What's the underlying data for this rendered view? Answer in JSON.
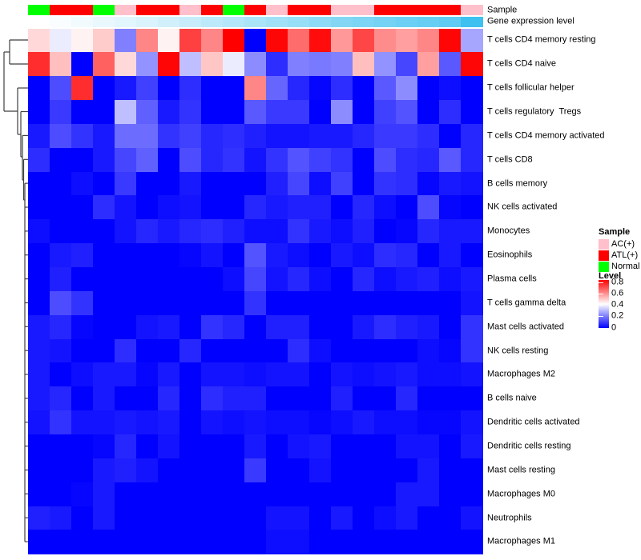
{
  "header": {
    "sample_label": "Sample",
    "gene_expression_label": "Gene expression level"
  },
  "chart_data": {
    "type": "heatmap",
    "title": "",
    "columns": 21,
    "rows": [
      "T cells CD4 memory resting",
      "T cells CD4 naive",
      "T cells follicular helper",
      "T cells regulatory  Tregs",
      "T cells CD4 memory activated",
      "T cells CD8",
      "B cells memory",
      "NK cells activated",
      "Monocytes",
      "Eosinophils",
      "Plasma cells",
      "T cells gamma delta",
      "Mast cells activated",
      "NK cells resting",
      "Macrophages M2",
      "B cells naive",
      "Dendritic cells activated",
      "Dendritic cells resting",
      "Mast cells resting",
      "Macrophages M0",
      "Neutrophils",
      "Macrophages M1"
    ],
    "values": [
      [
        0.46,
        0.37,
        0.42,
        0.48,
        0.2,
        0.59,
        0.42,
        0.7,
        0.59,
        0.8,
        0.0,
        0.79,
        0.63,
        0.78,
        0.56,
        0.69,
        0.58,
        0.55,
        0.59,
        0.79,
        0.26
      ],
      [
        0.73,
        0.5,
        0.0,
        0.65,
        0.46,
        0.23,
        0.79,
        0.3,
        0.49,
        0.37,
        0.22,
        0.07,
        0.2,
        0.19,
        0.2,
        0.5,
        0.23,
        0.11,
        0.55,
        0.14,
        0.79
      ],
      [
        0.0,
        0.12,
        0.73,
        0.0,
        0.04,
        0.1,
        0.0,
        0.07,
        0.0,
        0.0,
        0.59,
        0.16,
        0.06,
        0.01,
        0.07,
        0.0,
        0.14,
        0.22,
        0.0,
        0.02,
        0.0
      ],
      [
        0.0,
        0.09,
        0.0,
        0.0,
        0.3,
        0.15,
        0.04,
        0.08,
        0.0,
        0.0,
        0.14,
        0.09,
        0.09,
        0.0,
        0.22,
        0.0,
        0.1,
        0.13,
        0.0,
        0.07,
        0.0
      ],
      [
        0.04,
        0.12,
        0.08,
        0.04,
        0.17,
        0.17,
        0.08,
        0.1,
        0.06,
        0.07,
        0.05,
        0.03,
        0.03,
        0.04,
        0.04,
        0.06,
        0.09,
        0.09,
        0.07,
        0.0,
        0.06
      ],
      [
        0.07,
        0.0,
        0.0,
        0.04,
        0.11,
        0.15,
        0.0,
        0.12,
        0.06,
        0.08,
        0.03,
        0.08,
        0.13,
        0.1,
        0.08,
        0.0,
        0.12,
        0.07,
        0.06,
        0.14,
        0.06
      ],
      [
        0.0,
        0.0,
        0.02,
        0.0,
        0.09,
        0.0,
        0.0,
        0.04,
        0.0,
        0.0,
        0.0,
        0.05,
        0.11,
        0.02,
        0.1,
        0.0,
        0.08,
        0.07,
        0.01,
        0.04,
        0.03
      ],
      [
        0.0,
        0.0,
        0.0,
        0.07,
        0.03,
        0.0,
        0.02,
        0.03,
        0.0,
        0.0,
        0.06,
        0.04,
        0.05,
        0.05,
        0.0,
        0.06,
        0.02,
        0.0,
        0.12,
        0.01,
        0.0
      ],
      [
        0.02,
        0.0,
        0.0,
        0.0,
        0.03,
        0.06,
        0.04,
        0.06,
        0.07,
        0.05,
        0.02,
        0.02,
        0.08,
        0.04,
        0.02,
        0.05,
        0.0,
        0.01,
        0.06,
        0.04,
        0.04
      ],
      [
        0.0,
        0.04,
        0.05,
        0.0,
        0.0,
        0.0,
        0.0,
        0.01,
        0.03,
        0.0,
        0.13,
        0.04,
        0.02,
        0.0,
        0.04,
        0.02,
        0.07,
        0.06,
        0.0,
        0.04,
        0.0
      ],
      [
        0.0,
        0.05,
        0.0,
        0.0,
        0.0,
        0.0,
        0.0,
        0.0,
        0.0,
        0.02,
        0.11,
        0.03,
        0.06,
        0.02,
        0.0,
        0.06,
        0.02,
        0.04,
        0.05,
        0.02,
        0.04
      ],
      [
        0.0,
        0.12,
        0.08,
        0.0,
        0.0,
        0.0,
        0.0,
        0.0,
        0.0,
        0.0,
        0.08,
        0.0,
        0.0,
        0.0,
        0.0,
        0.0,
        0.0,
        0.0,
        0.0,
        0.0,
        0.03
      ],
      [
        0.04,
        0.06,
        0.01,
        0.0,
        0.0,
        0.03,
        0.04,
        0.0,
        0.08,
        0.06,
        0.0,
        0.05,
        0.05,
        0.0,
        0.0,
        0.04,
        0.07,
        0.05,
        0.04,
        0.0,
        0.08
      ],
      [
        0.04,
        0.03,
        0.0,
        0.0,
        0.07,
        0.0,
        0.0,
        0.06,
        0.0,
        0.0,
        0.0,
        0.0,
        0.07,
        0.02,
        0.0,
        0.0,
        0.0,
        0.0,
        0.02,
        0.01,
        0.08
      ],
      [
        0.04,
        0.0,
        0.02,
        0.04,
        0.04,
        0.01,
        0.04,
        0.0,
        0.03,
        0.03,
        0.02,
        0.03,
        0.03,
        0.0,
        0.03,
        0.02,
        0.03,
        0.04,
        0.02,
        0.02,
        0.03
      ],
      [
        0.04,
        0.06,
        0.0,
        0.04,
        0.0,
        0.0,
        0.06,
        0.0,
        0.07,
        0.05,
        0.05,
        0.0,
        0.0,
        0.0,
        0.05,
        0.0,
        0.0,
        0.06,
        0.0,
        0.0,
        0.0
      ],
      [
        0.03,
        0.08,
        0.03,
        0.03,
        0.04,
        0.03,
        0.04,
        0.0,
        0.03,
        0.02,
        0.03,
        0.02,
        0.02,
        0.01,
        0.02,
        0.04,
        0.02,
        0.02,
        0.01,
        0.01,
        0.03
      ],
      [
        0.0,
        0.0,
        0.0,
        0.01,
        0.06,
        0.0,
        0.03,
        0.0,
        0.0,
        0.0,
        0.04,
        0.0,
        0.03,
        0.04,
        0.0,
        0.0,
        0.0,
        0.03,
        0.03,
        0.0,
        0.04
      ],
      [
        0.0,
        0.0,
        0.0,
        0.04,
        0.05,
        0.03,
        0.0,
        0.0,
        0.0,
        0.0,
        0.09,
        0.0,
        0.0,
        0.03,
        0.0,
        0.0,
        0.0,
        0.0,
        0.04,
        0.0,
        0.0
      ],
      [
        0.0,
        0.0,
        0.01,
        0.04,
        0.0,
        0.0,
        0.0,
        0.0,
        0.0,
        0.0,
        0.0,
        0.0,
        0.0,
        0.0,
        0.0,
        0.0,
        0.0,
        0.04,
        0.04,
        0.0,
        0.0
      ],
      [
        0.05,
        0.04,
        0.0,
        0.04,
        0.0,
        0.0,
        0.0,
        0.0,
        0.0,
        0.0,
        0.0,
        0.03,
        0.03,
        0.0,
        0.04,
        0.0,
        0.02,
        0.04,
        0.0,
        0.0,
        0.03
      ],
      [
        0.0,
        0.0,
        0.0,
        0.0,
        0.0,
        0.0,
        0.0,
        0.0,
        0.0,
        0.0,
        0.0,
        0.02,
        0.02,
        0.0,
        0.0,
        0.0,
        0.0,
        0.0,
        0.0,
        0.0,
        0.0
      ]
    ],
    "column_annotations": {
      "sample": [
        "Normal",
        "ATL(+)",
        "ATL(+)",
        "Normal",
        "AC(+)",
        "ATL(+)",
        "ATL(+)",
        "AC(+)",
        "ATL(+)",
        "Normal",
        "ATL(+)",
        "AC(+)",
        "ATL(+)",
        "ATL(+)",
        "AC(+)",
        "AC(+)",
        "ATL(+)",
        "ATL(+)",
        "ATL(+)",
        "ATL(+)",
        "AC(+)"
      ],
      "gene_expression_level": [
        0.0,
        0.03,
        0.07,
        0.11,
        0.15,
        0.19,
        0.24,
        0.29,
        0.34,
        0.39,
        0.44,
        0.49,
        0.54,
        0.59,
        0.64,
        0.68,
        0.72,
        0.76,
        0.79,
        0.82,
        1.0
      ]
    },
    "annotation_colors": {
      "AC(+)": "#FFC0CB",
      "ATL(+)": "#FF0000",
      "Normal": "#00FF00"
    },
    "expression_gradient": {
      "low": "#FFFFFF",
      "high": "#3EC1F0"
    },
    "color_scale": {
      "min": 0,
      "mid": 0.4,
      "max": 0.8,
      "min_color": "#0000FF",
      "mid_color": "#FFFFFF",
      "max_color": "#FF0000"
    },
    "legend_position": "right",
    "grid": false
  },
  "legend": {
    "sample_title": "Sample",
    "sample_items": [
      {
        "label": "AC(+)",
        "color": "#FFC0CB"
      },
      {
        "label": "ATL(+)",
        "color": "#FF0000"
      },
      {
        "label": "Normal",
        "color": "#00FF00"
      }
    ],
    "level_title": "Level",
    "level_ticks": [
      "0.8",
      "0.6",
      "0.4",
      "0.2",
      "0"
    ]
  },
  "dendrogram": {
    "color": "#3f3f3f",
    "segments": [
      [
        12,
        50,
        35,
        50
      ],
      [
        12,
        80,
        35,
        80
      ],
      [
        12,
        50,
        12,
        80
      ],
      [
        5,
        65,
        12,
        65
      ],
      [
        5,
        65,
        5,
        139
      ],
      [
        5,
        139,
        22,
        139
      ],
      [
        22,
        110,
        35,
        110
      ],
      [
        22,
        110,
        22,
        168
      ],
      [
        22,
        168,
        26,
        168
      ],
      [
        26,
        139.5,
        35,
        139.5
      ],
      [
        26,
        139.5,
        26,
        196
      ],
      [
        26,
        196,
        28,
        196
      ],
      [
        28,
        169.4,
        35,
        169.4
      ],
      [
        28,
        169.4,
        28,
        225
      ],
      [
        28,
        225,
        29.5,
        225
      ],
      [
        29.5,
        199.3,
        35,
        199.3
      ],
      [
        29.5,
        199.3,
        29.5,
        250
      ],
      [
        29.5,
        250,
        31,
        250
      ],
      [
        31,
        229.1,
        31,
        677.1
      ],
      [
        31,
        229.1,
        35,
        229.1
      ],
      [
        31,
        259,
        35,
        259
      ],
      [
        31,
        288.9,
        35,
        288.9
      ],
      [
        31,
        318.7,
        35,
        318.7
      ],
      [
        32,
        348.6,
        35,
        348.6
      ],
      [
        32,
        378.5,
        35,
        378.5
      ],
      [
        31,
        408.3,
        35,
        408.3
      ],
      [
        32,
        438.2,
        35,
        438.2
      ],
      [
        31,
        468,
        35,
        468
      ],
      [
        32,
        497.9,
        35,
        497.9
      ],
      [
        31,
        527.8,
        35,
        527.8
      ],
      [
        32,
        557.6,
        35,
        557.6
      ],
      [
        31,
        587.5,
        35,
        587.5
      ],
      [
        32,
        617.4,
        35,
        617.4
      ],
      [
        31,
        647.2,
        35,
        647.2
      ],
      [
        31,
        677.1,
        35,
        677.1
      ],
      [
        31,
        348.6,
        32,
        348.6
      ],
      [
        31,
        378.5,
        32,
        378.5
      ],
      [
        31,
        438.2,
        32,
        438.2
      ],
      [
        31,
        497.9,
        32,
        497.9
      ],
      [
        31,
        557.6,
        32,
        557.6
      ],
      [
        31,
        617.4,
        32,
        617.4
      ]
    ]
  }
}
